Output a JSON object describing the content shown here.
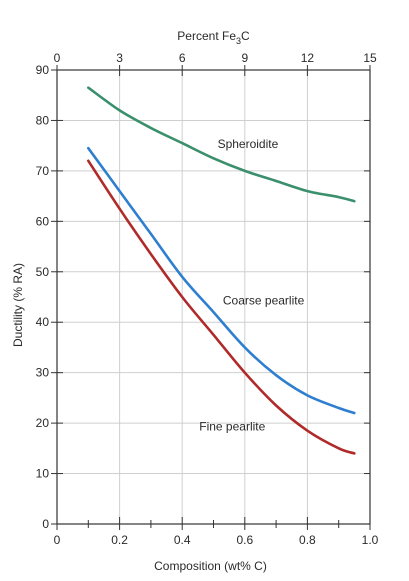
{
  "chart_data": {
    "type": "line",
    "title": "",
    "xlabel": "Composition (wt% C)",
    "ylabel": "Ductility (% RA)",
    "top_axis": {
      "label_prefix": "Percent Fe",
      "label_sub": "3",
      "label_suffix": "C",
      "ticks": [
        0,
        3,
        6,
        9,
        12,
        15
      ],
      "tick_labels": [
        "0",
        "3",
        "6",
        "9",
        "12",
        "15"
      ],
      "range": [
        0,
        15
      ]
    },
    "xlim": [
      0,
      1.0
    ],
    "ylim": [
      0,
      90
    ],
    "x_ticks": [
      0,
      0.2,
      0.4,
      0.6,
      0.8,
      1.0
    ],
    "x_tick_labels": [
      "0",
      "0.2",
      "0.4",
      "0.6",
      "0.8",
      "1.0"
    ],
    "y_ticks": [
      0,
      10,
      20,
      30,
      40,
      50,
      60,
      70,
      80,
      90
    ],
    "y_tick_labels": [
      "0",
      "10",
      "20",
      "30",
      "40",
      "50",
      "60",
      "70",
      "80",
      "90"
    ],
    "grid": true,
    "series": [
      {
        "name": "Spheroidite",
        "color": "#3a8f6c",
        "x": [
          0.1,
          0.2,
          0.3,
          0.4,
          0.5,
          0.6,
          0.7,
          0.8,
          0.9,
          0.95
        ],
        "y": [
          86.5,
          82,
          78.5,
          75.5,
          72.5,
          70,
          68,
          66,
          64.8,
          64
        ]
      },
      {
        "name": "Coarse pearlite",
        "color": "#2f7fd0",
        "x": [
          0.1,
          0.2,
          0.3,
          0.4,
          0.5,
          0.6,
          0.7,
          0.8,
          0.9,
          0.95
        ],
        "y": [
          74.5,
          66,
          57.5,
          49,
          42,
          35,
          29.5,
          25.5,
          23,
          22
        ]
      },
      {
        "name": "Fine pearlite",
        "color": "#b02a2a",
        "x": [
          0.1,
          0.2,
          0.3,
          0.4,
          0.5,
          0.6,
          0.7,
          0.8,
          0.9,
          0.95
        ],
        "y": [
          72,
          62.5,
          53.5,
          45,
          37.5,
          30,
          23.5,
          18.5,
          15,
          14
        ]
      }
    ],
    "annotations": [
      {
        "text": "Spheroidite",
        "series": "Spheroidite",
        "x": 0.61,
        "y": 74.5
      },
      {
        "text": "Coarse pearlite",
        "series": "Coarse pearlite",
        "x": 0.66,
        "y": 43.5
      },
      {
        "text": "Fine pearlite",
        "series": "Fine pearlite",
        "x": 0.56,
        "y": 18.5
      }
    ]
  }
}
